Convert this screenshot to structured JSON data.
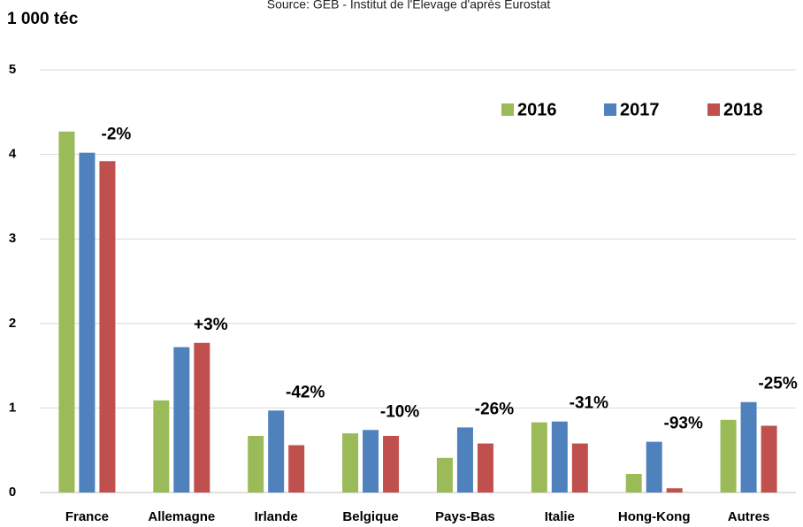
{
  "chart_data": {
    "type": "bar",
    "title": "1 000 téc",
    "subtitle": "Source: GEB - Institut de l'Elevage d'après Eurostat",
    "categories": [
      "France",
      "Allemagne",
      "Irlande",
      "Belgique",
      "Pays-Bas",
      "Italie",
      "Hong-Kong",
      "Autres"
    ],
    "series": [
      {
        "name": "2016",
        "color": "#9bbb59",
        "values": [
          4.27,
          1.09,
          0.67,
          0.7,
          0.41,
          0.83,
          0.22,
          0.86
        ]
      },
      {
        "name": "2017",
        "color": "#4f81bd",
        "values": [
          4.02,
          1.72,
          0.97,
          0.74,
          0.77,
          0.84,
          0.6,
          1.07
        ]
      },
      {
        "name": "2018",
        "color": "#c0504d",
        "values": [
          3.92,
          1.77,
          0.56,
          0.67,
          0.58,
          0.58,
          0.05,
          0.79
        ]
      }
    ],
    "annotations": [
      "-2%",
      "+3%",
      "-42%",
      "-10%",
      "-26%",
      "-31%",
      "-93%",
      "-25%"
    ],
    "ylim": [
      0,
      5
    ],
    "yticks": [
      0,
      1,
      2,
      3,
      4,
      5
    ],
    "grid": true,
    "legend": "top-right"
  }
}
